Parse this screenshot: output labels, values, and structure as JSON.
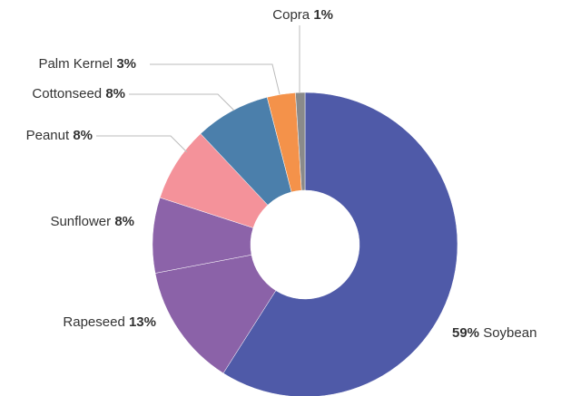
{
  "chart_data": {
    "type": "donut",
    "categories": [
      "Soybean",
      "Rapeseed",
      "Sunflower",
      "Peanut",
      "Cottonseed",
      "Palm Kernel",
      "Copra"
    ],
    "values": [
      59,
      13,
      8,
      8,
      8,
      3,
      1
    ],
    "value_labels": [
      "59%",
      "13%",
      "8%",
      "8%",
      "8%",
      "3%",
      "1%"
    ],
    "colors": [
      "#4f5aa8",
      "#8b62a8",
      "#8c63a9",
      "#f4929a",
      "#4b7fab",
      "#f4924a",
      "#8a8a8a"
    ]
  }
}
